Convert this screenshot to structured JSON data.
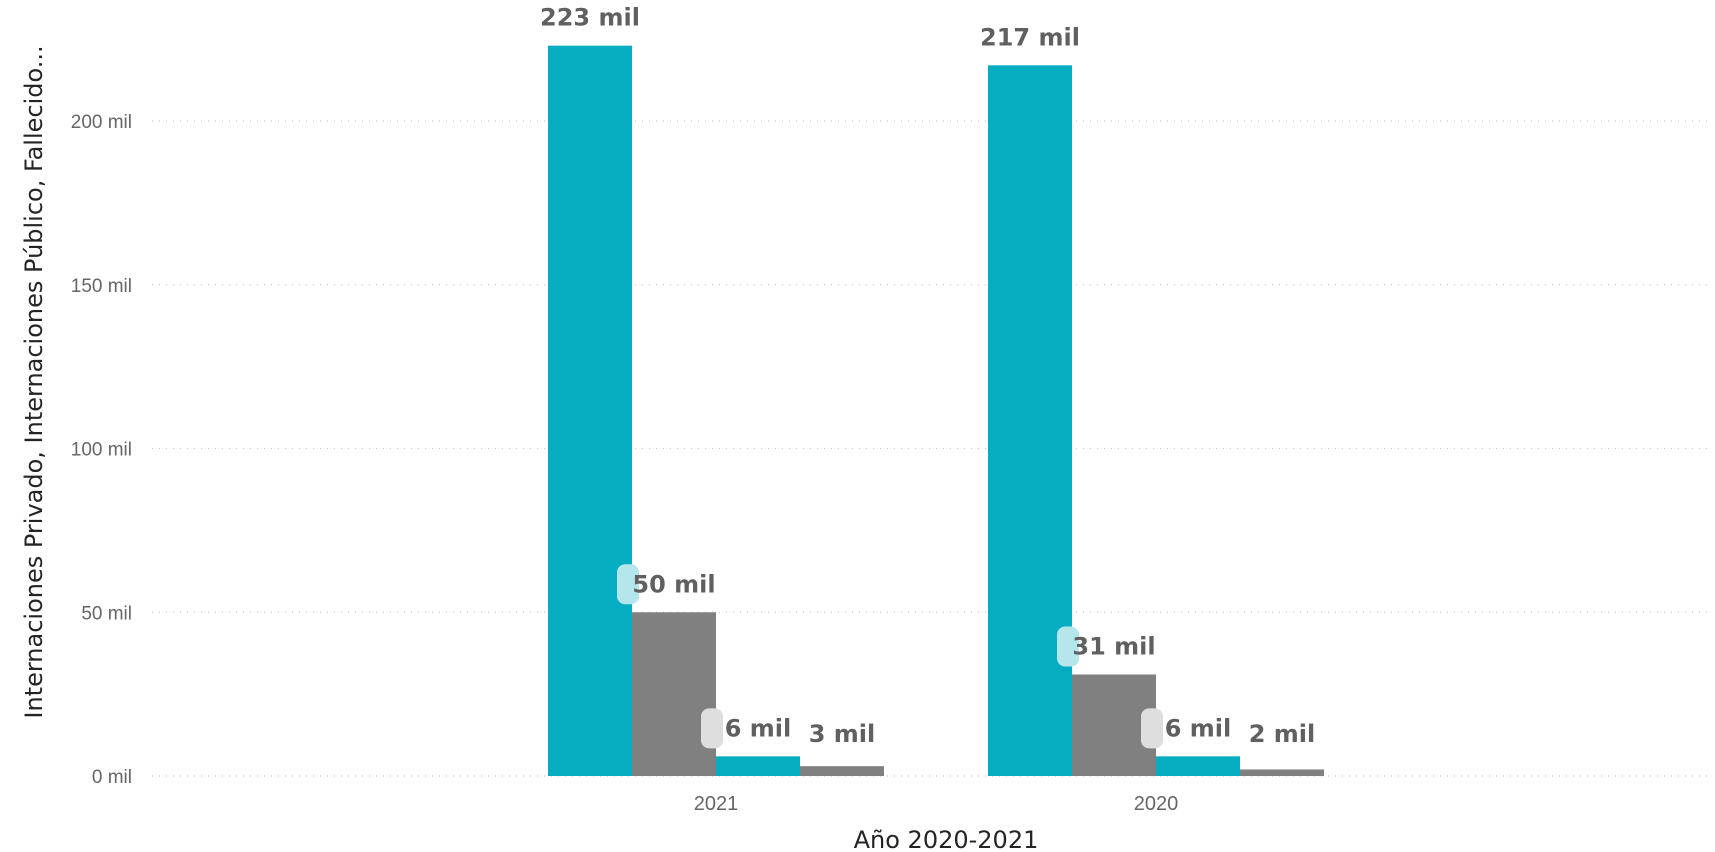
{
  "chart_data": {
    "type": "bar",
    "title": "",
    "xlabel": "Año 2020-2021",
    "ylabel": "Internaciones Privado, Internaciones Público, Fallecido...",
    "categories": [
      "2021",
      "2020"
    ],
    "ylim": [
      0,
      220000
    ],
    "yticks": [
      0,
      50000,
      100000,
      150000,
      200000
    ],
    "ytick_labels": [
      "0 mil",
      "50 mil",
      "100 mil",
      "150 mil",
      "200 mil"
    ],
    "grid": true,
    "series": [
      {
        "values": [
          223000,
          217000
        ],
        "labels": [
          "223 mil",
          "217 mil"
        ],
        "color": "#06adc1"
      },
      {
        "values": [
          50000,
          31000
        ],
        "labels": [
          "50 mil",
          "31 mil"
        ],
        "color": "#808080"
      },
      {
        "values": [
          6000,
          6000
        ],
        "labels": [
          "6 mil",
          "6 mil"
        ],
        "color": "#06adc1"
      },
      {
        "values": [
          3000,
          2000
        ],
        "labels": [
          "3 mil",
          "2 mil"
        ],
        "color": "#808080"
      }
    ]
  }
}
